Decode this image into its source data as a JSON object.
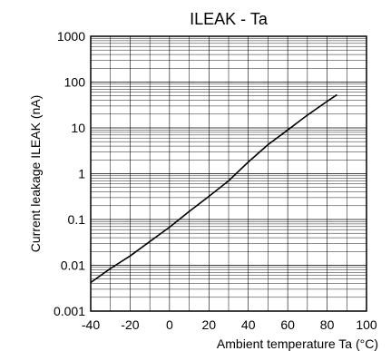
{
  "chart_data": {
    "type": "line",
    "title": "ILEAK - Ta",
    "xlabel": "Ambient temperature Ta (°C)",
    "ylabel": "Current leakage ILEAK (nA)",
    "xlim": [
      -40,
      100
    ],
    "ylim": [
      0.001,
      1000
    ],
    "yscale": "log",
    "grid": true,
    "x_ticks": [
      -40,
      -20,
      0,
      20,
      40,
      60,
      80,
      100
    ],
    "x_tick_labels": [
      "-40",
      "-20",
      "0",
      "20",
      "40",
      "60",
      "80",
      "100"
    ],
    "y_ticks": [
      0.001,
      0.01,
      0.1,
      1,
      10,
      100,
      1000
    ],
    "y_tick_labels": [
      "0.001",
      "0.01",
      "0.1",
      "1",
      "10",
      "100",
      "1000"
    ],
    "series": [
      {
        "x": [
          -40,
          -30,
          -20,
          -10,
          0,
          10,
          20,
          30,
          40,
          50,
          60,
          70,
          80,
          85
        ],
        "y": [
          0.0042,
          0.0085,
          0.016,
          0.033,
          0.068,
          0.15,
          0.32,
          0.7,
          1.8,
          4.3,
          9.0,
          19,
          38,
          53
        ]
      }
    ],
    "colors": {
      "line": "#000000",
      "grid": "#000000",
      "frame": "#000000"
    }
  }
}
